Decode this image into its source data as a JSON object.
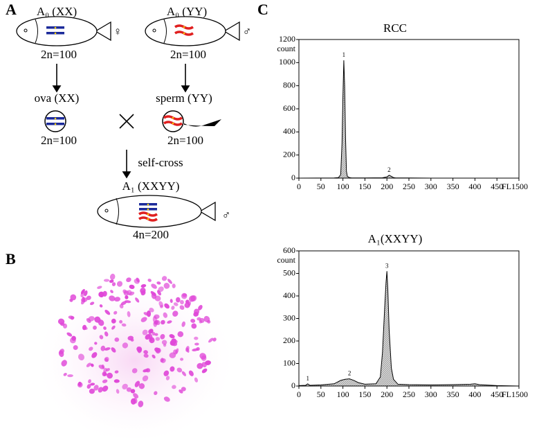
{
  "panel_labels": [
    "A",
    "B",
    "C"
  ],
  "diagram": {
    "parent_female": {
      "label": "A₀ (XX)",
      "symbol": "♀",
      "ploidy": "2n=100"
    },
    "parent_male": {
      "label": "A₀ (YY)",
      "symbol": "♂",
      "ploidy": "2n=100"
    },
    "ova": {
      "label": "ova (XX)",
      "ploidy": "2n=100"
    },
    "sperm": {
      "label": "sperm (YY)",
      "ploidy": "2n=100"
    },
    "cross_label": "self-cross",
    "offspring": {
      "label": "A₁ (XXYY)",
      "symbol": "♂",
      "ploidy": "4n=200"
    }
  },
  "chart_data": [
    {
      "type": "area",
      "title": "RCC",
      "ylabel": "count",
      "xlabel": "FL1",
      "color": "#cfcfcf",
      "x": [
        0,
        80,
        90,
        95,
        98,
        100,
        102,
        104,
        106,
        108,
        110,
        115,
        120,
        150,
        190,
        200,
        205,
        210,
        215,
        220,
        250,
        300,
        400,
        500
      ],
      "values": [
        0,
        2,
        5,
        30,
        300,
        700,
        1020,
        800,
        350,
        60,
        15,
        4,
        2,
        2,
        3,
        10,
        25,
        15,
        5,
        2,
        1,
        0,
        0,
        0
      ],
      "annotations": [
        {
          "text": "1",
          "x": 102,
          "y": 1020
        },
        {
          "text": "2",
          "x": 205,
          "y": 25
        }
      ],
      "xlim": [
        0,
        500
      ],
      "xticks": [
        0,
        50,
        100,
        150,
        200,
        250,
        300,
        350,
        400,
        450,
        500
      ],
      "ylim": [
        0,
        1200
      ],
      "yticks": [
        0,
        200,
        400,
        600,
        800,
        1000,
        1200
      ]
    },
    {
      "type": "area",
      "title": "A₁(XXYY)",
      "ylabel": "count",
      "xlabel": "FL1",
      "color": "#cfcfcf",
      "x": [
        0,
        15,
        20,
        25,
        50,
        80,
        95,
        105,
        115,
        125,
        135,
        150,
        175,
        185,
        190,
        195,
        198,
        200,
        202,
        205,
        210,
        215,
        225,
        250,
        300,
        350,
        390,
        400,
        410,
        450,
        500
      ],
      "values": [
        2,
        3,
        10,
        3,
        5,
        10,
        25,
        30,
        32,
        25,
        15,
        8,
        10,
        40,
        150,
        350,
        460,
        510,
        430,
        250,
        80,
        30,
        8,
        6,
        5,
        6,
        8,
        10,
        6,
        2,
        0
      ],
      "annotations": [
        {
          "text": "1",
          "x": 20,
          "y": 10
        },
        {
          "text": "2",
          "x": 115,
          "y": 32
        },
        {
          "text": "3",
          "x": 200,
          "y": 510
        }
      ],
      "xlim": [
        0,
        500
      ],
      "xticks": [
        0,
        50,
        100,
        150,
        200,
        250,
        300,
        350,
        400,
        450,
        500
      ],
      "ylim": [
        0,
        600
      ],
      "yticks": [
        0,
        100,
        200,
        300,
        400,
        500,
        600
      ]
    }
  ]
}
